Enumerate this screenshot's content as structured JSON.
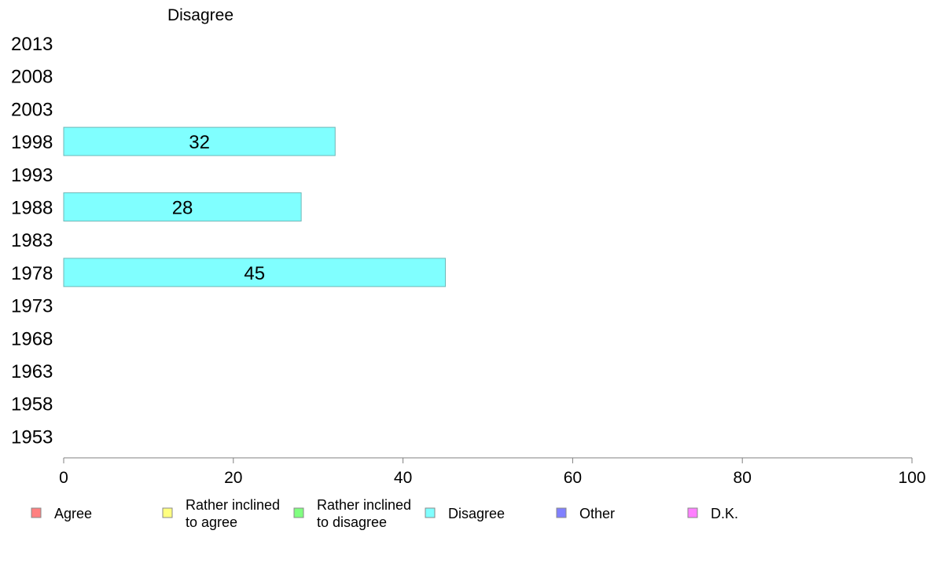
{
  "chart_data": {
    "type": "bar",
    "orientation": "horizontal",
    "title": "Disagree",
    "categories": [
      "2013",
      "2008",
      "2003",
      "1998",
      "1993",
      "1988",
      "1983",
      "1978",
      "1973",
      "1968",
      "1963",
      "1958",
      "1953"
    ],
    "series": [
      {
        "name": "Disagree",
        "color": "#80ffff",
        "values": [
          null,
          null,
          null,
          32,
          null,
          28,
          null,
          45,
          null,
          null,
          null,
          null,
          null
        ]
      }
    ],
    "xlim": [
      0,
      100
    ],
    "xticks": [
      0,
      20,
      40,
      60,
      80,
      100
    ],
    "grid": false,
    "legend": {
      "placement": "bottom",
      "entries": [
        {
          "lines": [
            "Agree"
          ],
          "color": "#ff8080"
        },
        {
          "lines": [
            "Rather inclined",
            "to agree"
          ],
          "color": "#ffff80"
        },
        {
          "lines": [
            "Rather inclined",
            "to disagree"
          ],
          "color": "#80ff80"
        },
        {
          "lines": [
            "Disagree"
          ],
          "color": "#80ffff"
        },
        {
          "lines": [
            "Other"
          ],
          "color": "#8080ff"
        },
        {
          "lines": [
            "D.K."
          ],
          "color": "#ff80ff"
        }
      ]
    }
  }
}
